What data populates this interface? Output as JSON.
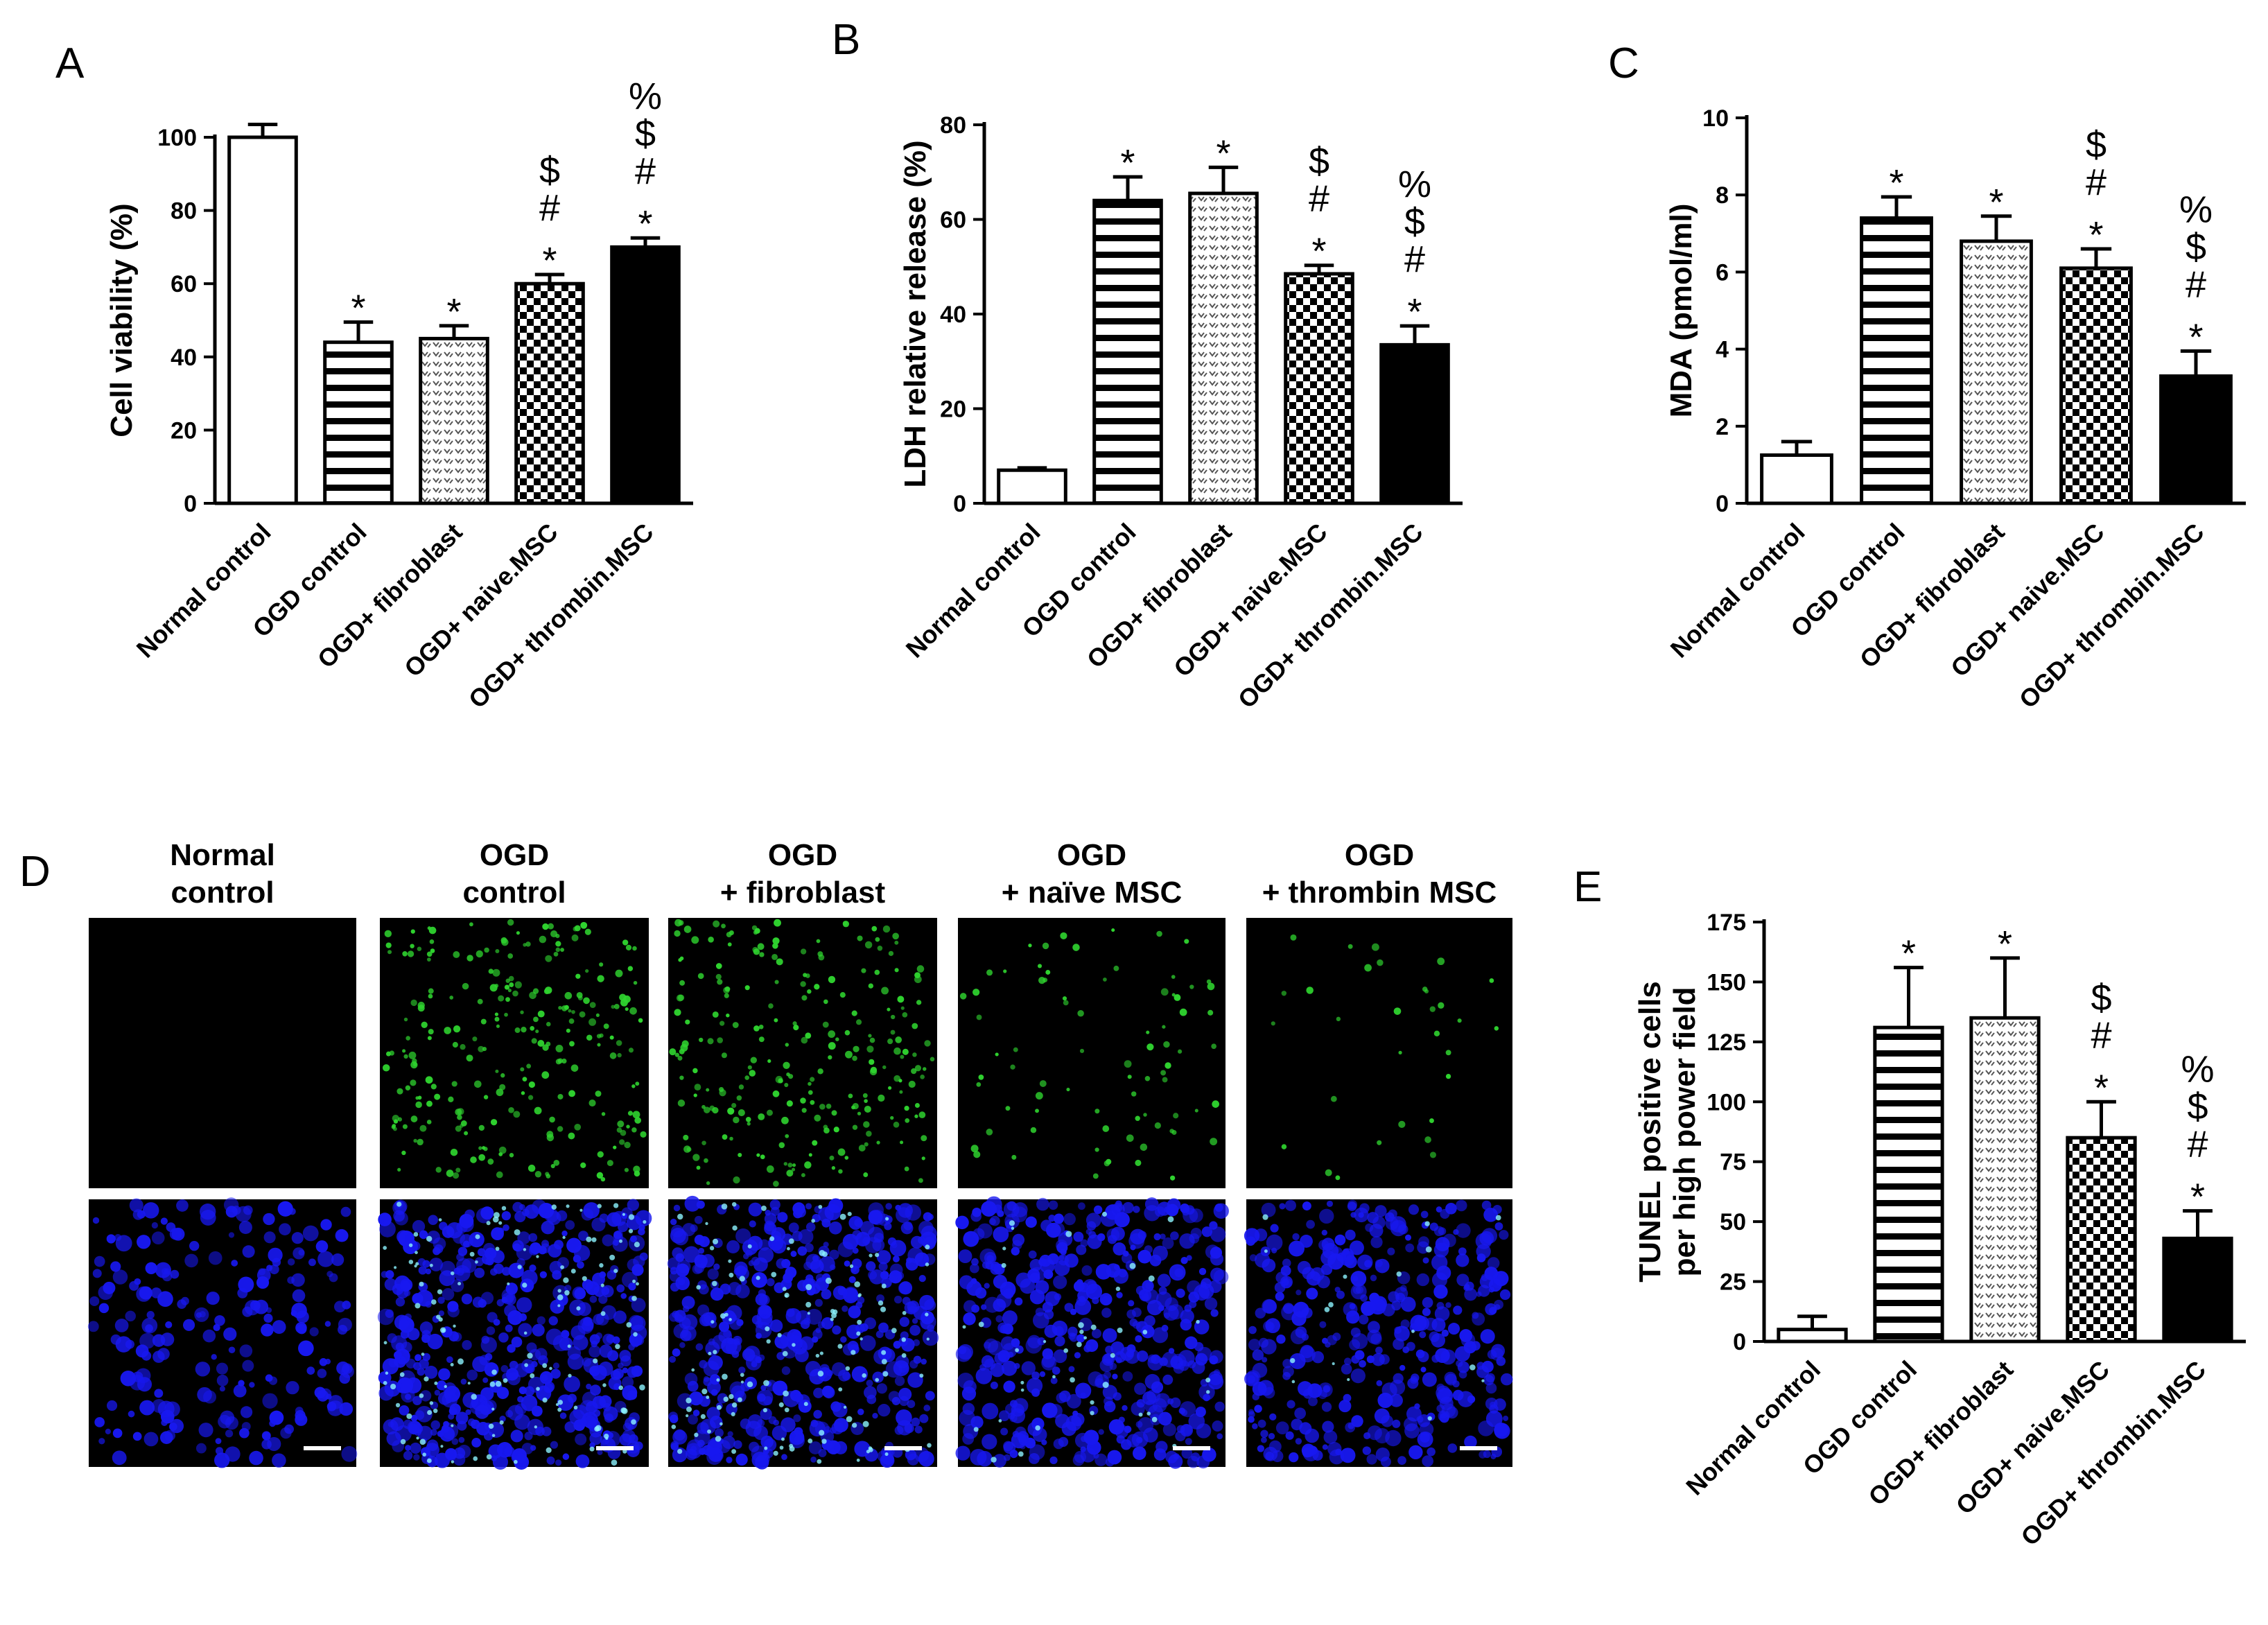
{
  "colors": {
    "green": "#2fd42f",
    "blue": "#1818f0",
    "cyan": "#8cf4ff",
    "black": "#000000"
  },
  "panel_d": {
    "letter": "D",
    "columns": [
      {
        "line1": "Normal",
        "line2": "control",
        "tunel_density": 0,
        "dapi_density": 0.45
      },
      {
        "line1": "OGD",
        "line2": "control",
        "tunel_density": 1.0,
        "dapi_density": 1.0
      },
      {
        "line1": "OGD",
        "line2": "+ fibroblast",
        "tunel_density": 0.95,
        "dapi_density": 1.0
      },
      {
        "line1": "OGD",
        "line2": "+ naïve MSC",
        "tunel_density": 0.3,
        "dapi_density": 0.95
      },
      {
        "line1": "OGD",
        "line2": "+ thrombin MSC",
        "tunel_density": 0.12,
        "dapi_density": 0.8
      }
    ]
  },
  "chart_data": [
    {
      "panel": "A",
      "type": "bar",
      "categories": [
        "Normal control",
        "OGD control",
        "OGD+ fibroblast",
        "OGD+ naive.MSC",
        "OGD+ thrombin.MSC"
      ],
      "values": [
        100,
        44,
        45,
        60,
        70
      ],
      "errors": [
        3.5,
        5.5,
        3.5,
        2.5,
        2.5
      ],
      "patterns": [
        "open",
        "hlines",
        "dots",
        "checker",
        "solid"
      ],
      "annotations": [
        [],
        [
          "*"
        ],
        [
          "*"
        ],
        [
          "$",
          "#",
          "*"
        ],
        [
          "%",
          "$",
          "#",
          "*"
        ]
      ],
      "ylabel": "Cell viability (%)",
      "ylim": [
        0,
        100
      ],
      "yticks": [
        0,
        20,
        40,
        60,
        80,
        100
      ]
    },
    {
      "panel": "B",
      "type": "bar",
      "categories": [
        "Normal control",
        "OGD control",
        "OGD+ fibroblast",
        "OGD+ naive.MSC",
        "OGD+ thrombin.MSC"
      ],
      "values": [
        7,
        64,
        65.5,
        48.5,
        33.5
      ],
      "errors": [
        0.5,
        5,
        5.5,
        1.8,
        4
      ],
      "patterns": [
        "open",
        "hlines",
        "dots",
        "checker",
        "solid"
      ],
      "annotations": [
        [],
        [
          "*"
        ],
        [
          "*"
        ],
        [
          "$",
          "#",
          "*"
        ],
        [
          "%",
          "$",
          "#",
          "*"
        ]
      ],
      "ylabel": "LDH relative release (%)",
      "ylim": [
        0,
        80
      ],
      "yticks": [
        0,
        20,
        40,
        60,
        80
      ]
    },
    {
      "panel": "C",
      "type": "bar",
      "categories": [
        "Normal control",
        "OGD control",
        "OGD+ fibroblast",
        "OGD+ naive.MSC",
        "OGD+ thrombin.MSC"
      ],
      "values": [
        1.25,
        7.4,
        6.8,
        6.1,
        3.3
      ],
      "errors": [
        0.35,
        0.55,
        0.65,
        0.5,
        0.65
      ],
      "patterns": [
        "open",
        "hlines",
        "dots",
        "checker",
        "solid"
      ],
      "annotations": [
        [],
        [
          "*"
        ],
        [
          "*"
        ],
        [
          "$",
          "#",
          "*"
        ],
        [
          "%",
          "$",
          "#",
          "*"
        ]
      ],
      "ylabel": "MDA (pmol/ml)",
      "ylim": [
        0,
        10
      ],
      "yticks": [
        0,
        2,
        4,
        6,
        8,
        10
      ]
    },
    {
      "panel": "E",
      "type": "bar",
      "categories": [
        "Normal control",
        "OGD control",
        "OGD+ fibroblast",
        "OGD+ naive.MSC",
        "OGD+ thrombin.MSC"
      ],
      "values": [
        5,
        131,
        135,
        85,
        43
      ],
      "errors": [
        5.5,
        25,
        25,
        15,
        11.5
      ],
      "patterns": [
        "open",
        "hlines",
        "dots",
        "checker",
        "solid"
      ],
      "annotations": [
        [],
        [
          "*"
        ],
        [
          "*"
        ],
        [
          "$",
          "#",
          "*"
        ],
        [
          "%",
          "$",
          "#",
          "*"
        ]
      ],
      "ylabel": [
        "TUNEL positive cells",
        "per high power field"
      ],
      "ylim": [
        0,
        175
      ],
      "yticks": [
        0,
        25,
        50,
        75,
        100,
        125,
        150,
        175
      ]
    }
  ]
}
